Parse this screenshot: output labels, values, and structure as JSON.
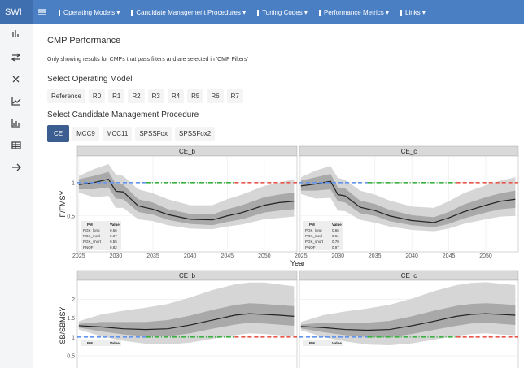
{
  "navbar": {
    "brand": "SWI",
    "menus": [
      "Operating Models",
      "Candidate Management Procedures",
      "Tuning Codes",
      "Performance Metrics",
      "Links"
    ]
  },
  "page": {
    "title": "CMP Performance",
    "note": "Only showing results for CMPs that pass filters and are selected in 'CMP Filters'",
    "om_heading": "Select Operating Model",
    "om_buttons": [
      "Reference",
      "R0",
      "R1",
      "R2",
      "R3",
      "R4",
      "R5",
      "R6",
      "R7"
    ],
    "cmp_heading": "Select Candidate Management Procedure",
    "cmp_buttons": [
      "CE",
      "MCC9",
      "MCC11",
      "SPSSFox",
      "SPSSFox2"
    ]
  },
  "plots": [
    {
      "ylabel": "F/FMSY",
      "xlabel": "Year",
      "xlim": [
        2024.8,
        2054.4
      ],
      "ylim": [
        -0.04,
        1.4
      ],
      "xticks": [
        2025,
        2030,
        2035,
        2040,
        2045,
        2050
      ],
      "yticks": [
        0.5,
        1.0
      ],
      "reference": {
        "value": 1,
        "segments": [
          {
            "color": "#6495ed",
            "to": 2034
          },
          {
            "color": "#3cb043",
            "to": 2046
          },
          {
            "color": "#e8574c",
            "to": 2054.4
          }
        ]
      },
      "panels": [
        {
          "strip": "CE_b",
          "x": [
            2025,
            2027,
            2029,
            2030,
            2031,
            2033,
            2035,
            2037,
            2040,
            2043,
            2045,
            2047,
            2050,
            2052,
            2054
          ],
          "median": [
            0.97,
            1.0,
            1.05,
            0.87,
            0.86,
            0.65,
            0.6,
            0.52,
            0.45,
            0.44,
            0.5,
            0.55,
            0.66,
            0.7,
            0.72
          ],
          "inner_lo": [
            0.9,
            0.9,
            0.93,
            0.76,
            0.75,
            0.56,
            0.52,
            0.44,
            0.38,
            0.36,
            0.41,
            0.45,
            0.55,
            0.58,
            0.6
          ],
          "inner_hi": [
            1.05,
            1.1,
            1.16,
            0.98,
            0.97,
            0.75,
            0.7,
            0.6,
            0.53,
            0.52,
            0.6,
            0.66,
            0.78,
            0.82,
            0.85
          ],
          "outer_lo": [
            0.85,
            0.78,
            0.8,
            0.62,
            0.62,
            0.45,
            0.42,
            0.36,
            0.31,
            0.3,
            0.34,
            0.37,
            0.45,
            0.47,
            0.49
          ],
          "outer_hi": [
            1.1,
            1.2,
            1.28,
            1.12,
            1.1,
            0.9,
            0.84,
            0.75,
            0.66,
            0.66,
            0.75,
            0.82,
            0.95,
            1.0,
            1.05
          ],
          "table": {
            "header": [
              "PM",
              "Value"
            ],
            "rows": [
              [
                "PGK_long",
                "0.66"
              ],
              [
                "PGK_med",
                "0.67"
              ],
              [
                "PGK_short",
                "0.55"
              ],
              [
                "PNOF",
                "0.82"
              ]
            ]
          }
        },
        {
          "strip": "CE_c",
          "x": [
            2025,
            2027,
            2029,
            2030,
            2031,
            2033,
            2035,
            2037,
            2040,
            2043,
            2045,
            2047,
            2050,
            2052,
            2054
          ],
          "median": [
            0.95,
            0.98,
            1.02,
            0.82,
            0.8,
            0.63,
            0.58,
            0.5,
            0.43,
            0.4,
            0.47,
            0.56,
            0.66,
            0.72,
            0.75
          ],
          "inner_lo": [
            0.88,
            0.88,
            0.9,
            0.72,
            0.7,
            0.54,
            0.5,
            0.42,
            0.36,
            0.33,
            0.38,
            0.46,
            0.55,
            0.6,
            0.62
          ],
          "inner_hi": [
            1.03,
            1.08,
            1.13,
            0.93,
            0.91,
            0.73,
            0.68,
            0.59,
            0.51,
            0.48,
            0.56,
            0.67,
            0.78,
            0.84,
            0.88
          ],
          "outer_lo": [
            0.83,
            0.76,
            0.77,
            0.58,
            0.57,
            0.44,
            0.4,
            0.34,
            0.29,
            0.27,
            0.31,
            0.38,
            0.45,
            0.49,
            0.5
          ],
          "outer_hi": [
            1.08,
            1.18,
            1.25,
            1.07,
            1.04,
            0.88,
            0.82,
            0.73,
            0.64,
            0.62,
            0.72,
            0.84,
            0.96,
            1.03,
            1.08
          ],
          "table": {
            "header": [
              "PM",
              "Value"
            ],
            "rows": [
              [
                "PGK_long",
                "0.66"
              ],
              [
                "PGK_med",
                "0.61"
              ],
              [
                "PGK_short",
                "0.70"
              ],
              [
                "PNOF",
                "0.97"
              ]
            ]
          }
        }
      ]
    },
    {
      "ylabel": "SB/SBMSY",
      "xlim": [
        2024.8,
        2054.4
      ],
      "ylim": [
        0.11,
        2.51
      ],
      "yticks": [
        0.5,
        1.0,
        1.5,
        2.0
      ],
      "reference": {
        "value": 1,
        "segments": [
          {
            "color": "#6495ed",
            "to": 2034
          },
          {
            "color": "#3cb043",
            "to": 2046
          },
          {
            "color": "#e8574c",
            "to": 2054.4
          }
        ]
      },
      "panels": [
        {
          "strip": "CE_b",
          "x": [
            2025,
            2028,
            2031,
            2034,
            2037,
            2040,
            2043,
            2046,
            2048,
            2050,
            2052,
            2054
          ],
          "median": [
            1.3,
            1.27,
            1.22,
            1.2,
            1.22,
            1.32,
            1.45,
            1.58,
            1.62,
            1.6,
            1.58,
            1.55
          ],
          "inner_lo": [
            1.25,
            1.15,
            1.07,
            1.02,
            1.02,
            1.1,
            1.22,
            1.33,
            1.38,
            1.36,
            1.33,
            1.3
          ],
          "inner_hi": [
            1.35,
            1.4,
            1.4,
            1.4,
            1.45,
            1.57,
            1.72,
            1.85,
            1.9,
            1.88,
            1.85,
            1.82
          ],
          "outer_lo": [
            1.2,
            1.02,
            0.9,
            0.82,
            0.8,
            0.85,
            0.95,
            1.05,
            1.1,
            1.08,
            1.05,
            1.02
          ],
          "outer_hi": [
            1.42,
            1.6,
            1.7,
            1.78,
            1.88,
            2.05,
            2.25,
            2.4,
            2.45,
            2.45,
            2.4,
            2.35
          ],
          "table": {
            "header": [
              "PM",
              "Value"
            ],
            "rows": []
          }
        },
        {
          "strip": "CE_c",
          "x": [
            2025,
            2028,
            2031,
            2034,
            2037,
            2040,
            2043,
            2046,
            2048,
            2050,
            2052,
            2054
          ],
          "median": [
            1.28,
            1.25,
            1.2,
            1.18,
            1.2,
            1.3,
            1.42,
            1.55,
            1.6,
            1.62,
            1.6,
            1.58
          ],
          "inner_lo": [
            1.23,
            1.13,
            1.05,
            1.0,
            1.0,
            1.08,
            1.19,
            1.3,
            1.36,
            1.38,
            1.35,
            1.32
          ],
          "inner_hi": [
            1.33,
            1.38,
            1.38,
            1.38,
            1.43,
            1.55,
            1.7,
            1.83,
            1.88,
            1.9,
            1.88,
            1.85
          ],
          "outer_lo": [
            1.18,
            1.0,
            0.88,
            0.8,
            0.78,
            0.83,
            0.93,
            1.03,
            1.08,
            1.1,
            1.07,
            1.05
          ],
          "outer_hi": [
            1.4,
            1.58,
            1.68,
            1.76,
            1.86,
            2.02,
            2.22,
            2.38,
            2.44,
            2.46,
            2.42,
            2.38
          ],
          "table": {
            "header": [
              "PM",
              "Value"
            ],
            "rows": []
          }
        }
      ]
    }
  ]
}
